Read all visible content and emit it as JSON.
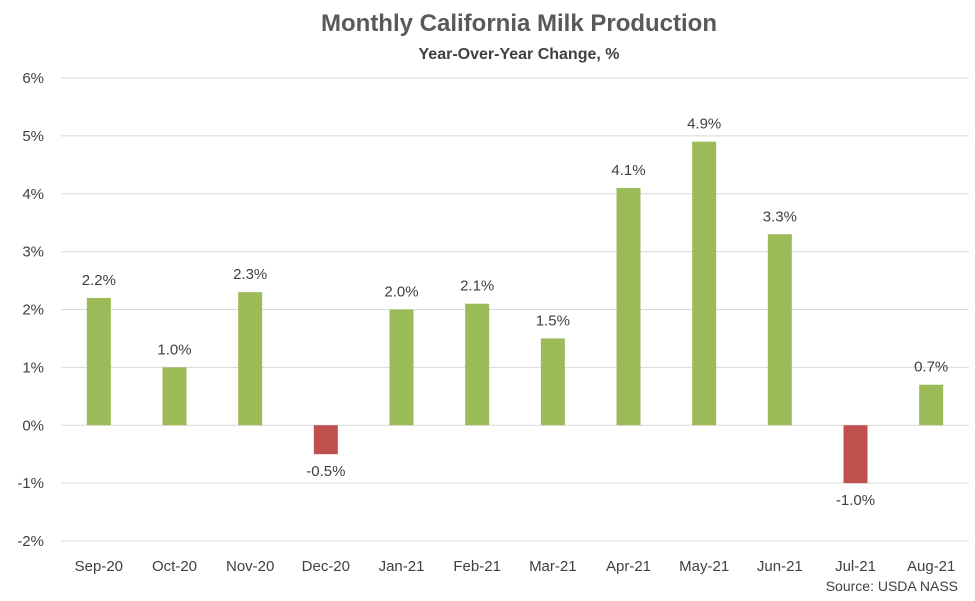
{
  "chart_data": {
    "type": "bar",
    "title": "Monthly California Milk Production",
    "subtitle": "Year-Over-Year Change, %",
    "source": "Source: USDA NASS",
    "categories": [
      "Sep-20",
      "Oct-20",
      "Nov-20",
      "Dec-20",
      "Jan-21",
      "Feb-21",
      "Mar-21",
      "Apr-21",
      "May-21",
      "Jun-21",
      "Jul-21",
      "Aug-21"
    ],
    "values": [
      2.2,
      1.0,
      2.3,
      -0.5,
      2.0,
      2.1,
      1.5,
      4.1,
      4.9,
      3.3,
      -1.0,
      0.7
    ],
    "data_labels": [
      "2.2%",
      "1.0%",
      "2.3%",
      "-0.5%",
      "2.0%",
      "2.1%",
      "1.5%",
      "4.1%",
      "4.9%",
      "3.3%",
      "-1.0%",
      "0.7%"
    ],
    "ylim": [
      -2,
      6
    ],
    "yticks": [
      -2,
      -1,
      0,
      1,
      2,
      3,
      4,
      5,
      6
    ],
    "ytick_labels": [
      "-2%",
      "-1%",
      "0%",
      "1%",
      "2%",
      "3%",
      "4%",
      "5%",
      "6%"
    ],
    "grid": true,
    "legend": "none",
    "colors": {
      "positive": "#9BBB59",
      "negative": "#C0504D",
      "grid": "#D9D9D9"
    }
  }
}
